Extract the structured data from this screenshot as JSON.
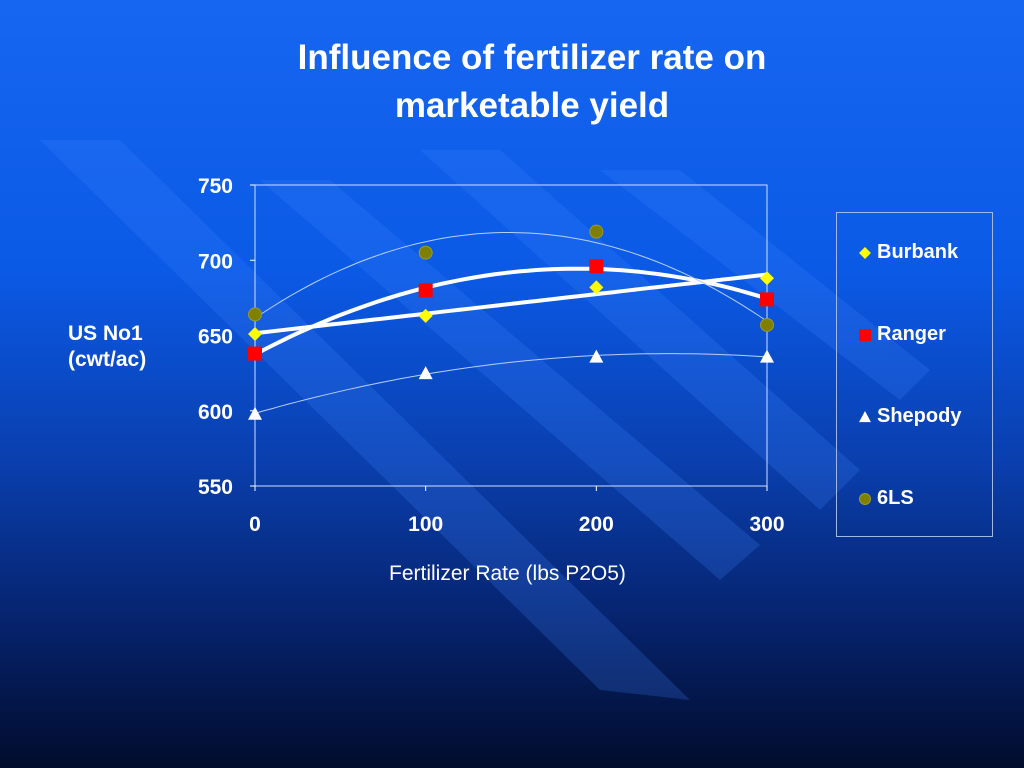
{
  "chart_data": {
    "type": "scatter",
    "title": "Influence of fertilizer rate on marketable yield",
    "title_lines": [
      "Influence of fertilizer rate on",
      "marketable yield"
    ],
    "xlabel": "Fertilizer Rate (lbs P2O5)",
    "ylabel_lines": [
      "US No1",
      "(cwt/ac)"
    ],
    "xlim": [
      0,
      300
    ],
    "ylim": [
      550,
      750
    ],
    "xticks": [
      "0",
      "100",
      "200",
      "300"
    ],
    "yticks": [
      "550",
      "600",
      "650",
      "700",
      "750"
    ],
    "grid": false,
    "legend_position": "right",
    "x": [
      0,
      100,
      200,
      300
    ],
    "series": [
      {
        "name": "Burbank",
        "values": [
          651,
          663,
          682,
          688
        ],
        "marker": "diamond",
        "color": "#ffff00",
        "trendline": "linear",
        "trend_style": "thick"
      },
      {
        "name": "Ranger",
        "values": [
          638,
          680,
          696,
          674
        ],
        "marker": "square",
        "color": "#ff0000",
        "trendline": "polynomial",
        "trend_style": "thick"
      },
      {
        "name": "Shepody",
        "values": [
          598,
          625,
          636,
          636
        ],
        "marker": "triangle",
        "color": "#ffffff",
        "trendline": "polynomial",
        "trend_style": "thin"
      },
      {
        "name": "6LS",
        "values": [
          664,
          705,
          719,
          657
        ],
        "marker": "circle",
        "color": "#808000",
        "trendline": "polynomial",
        "trend_style": "thin"
      }
    ]
  }
}
